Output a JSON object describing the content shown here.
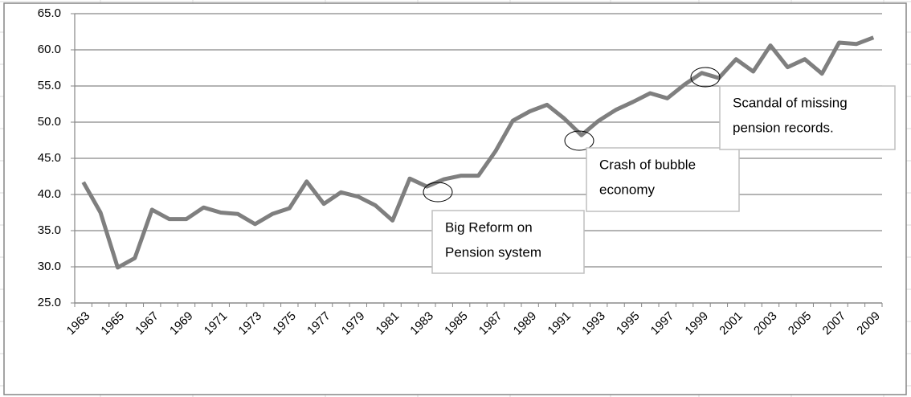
{
  "chart_data": {
    "type": "line",
    "categories": [
      "1963",
      null,
      "1965",
      null,
      "1967",
      null,
      "1969",
      null,
      "1971",
      null,
      "1973",
      null,
      "1975",
      null,
      "1977",
      null,
      "1979",
      null,
      "1981",
      null,
      "1983",
      null,
      "1985",
      null,
      "1987",
      null,
      "1989",
      null,
      "1991",
      null,
      "1993",
      null,
      "1995",
      null,
      "1997",
      null,
      "1999",
      null,
      "2001",
      null,
      "2003",
      null,
      "2005",
      null,
      "2007",
      null,
      "2009"
    ],
    "series": [
      {
        "color": "#7f7f7f",
        "values": [
          41.7,
          37.5,
          29.9,
          31.2,
          37.9,
          36.6,
          36.6,
          38.2,
          37.5,
          37.3,
          35.9,
          37.3,
          38.1,
          41.8,
          38.7,
          40.3,
          39.7,
          38.5,
          36.4,
          42.2,
          41.1,
          42.1,
          42.6,
          42.6,
          46.0,
          50.2,
          51.5,
          52.4,
          50.5,
          48.2,
          50.2,
          51.7,
          52.8,
          54.0,
          53.3,
          55.2,
          56.8,
          56.1,
          58.7,
          57.0,
          60.6,
          57.6,
          58.7,
          56.7,
          61.0,
          60.8,
          61.7
        ]
      }
    ],
    "ylim": [
      25,
      65
    ],
    "yticks": [
      {
        "value": 25,
        "label": "25.0"
      },
      {
        "value": 30,
        "label": "30.0"
      },
      {
        "value": 35,
        "label": "35.0"
      },
      {
        "value": 40,
        "label": "40.0"
      },
      {
        "value": 45,
        "label": "45.0"
      },
      {
        "value": 50,
        "label": "50.0"
      },
      {
        "value": 55,
        "label": "55.0"
      },
      {
        "value": 60,
        "label": "60.0"
      },
      {
        "value": 65,
        "label": "65.0"
      }
    ],
    "grid": true,
    "annotations": [
      {
        "lines": [
          "Big Reform on",
          "Pension system"
        ]
      },
      {
        "lines": [
          "Crash of bubble",
          "economy"
        ]
      },
      {
        "lines": [
          "Scandal of missing",
          "pension records."
        ]
      }
    ]
  }
}
